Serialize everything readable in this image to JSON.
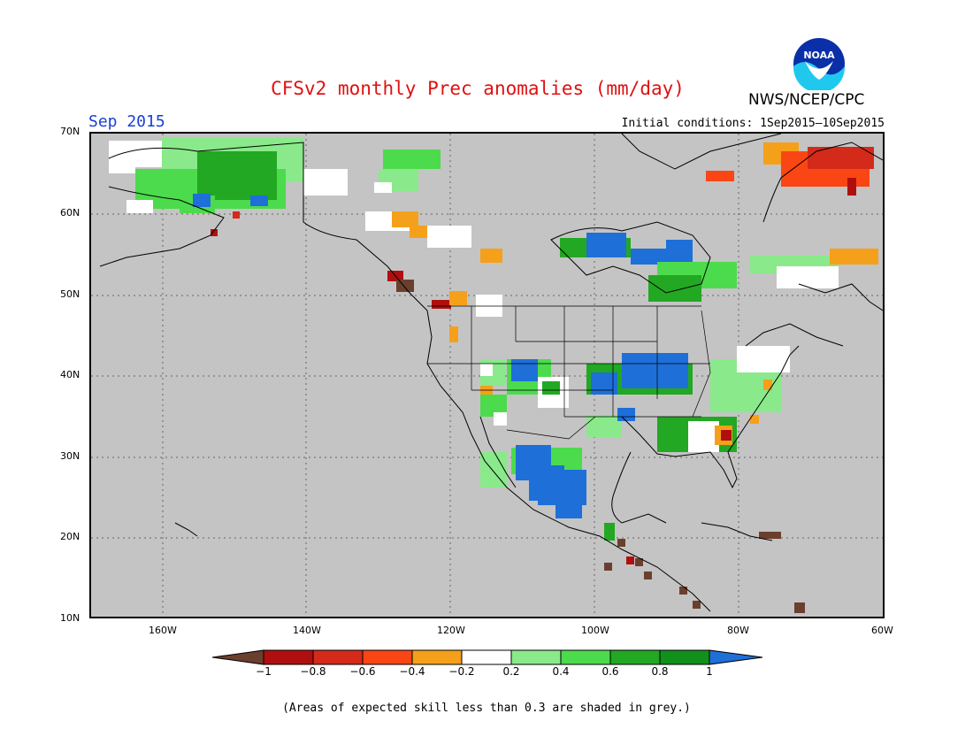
{
  "title": "CFSv2 monthly Prec anomalies (mm/day)",
  "agency": "NWS/NCEP/CPC",
  "logo_text": "NOAA",
  "month_label": "Sep 2015",
  "initial_conditions": "Initial conditions: 1Sep2015—10Sep2015",
  "footnote": "(Areas of expected skill less than 0.3 are shaded in grey.)",
  "lat_ticks": [
    "70N",
    "60N",
    "50N",
    "40N",
    "30N",
    "20N",
    "10N"
  ],
  "lon_ticks": [
    "160W",
    "140W",
    "120W",
    "100W",
    "80W",
    "60W"
  ],
  "colorbar": {
    "labels": [
      "−1",
      "−0.8",
      "−0.6",
      "−0.4",
      "−0.2",
      "0.2",
      "0.4",
      "0.6",
      "0.8",
      "1"
    ],
    "colors": [
      "#6b3f2e",
      "#b00f0f",
      "#d42a1a",
      "#fa4614",
      "#f5a01a",
      "#ffffff",
      "#8ae98a",
      "#4cdb4c",
      "#22a822",
      "#11901b",
      "#1e6fd8"
    ]
  },
  "colors": {
    "grey_mask": "#c4c4c4",
    "title_red": "#e01010",
    "month_blue": "#1a3fd6"
  }
}
